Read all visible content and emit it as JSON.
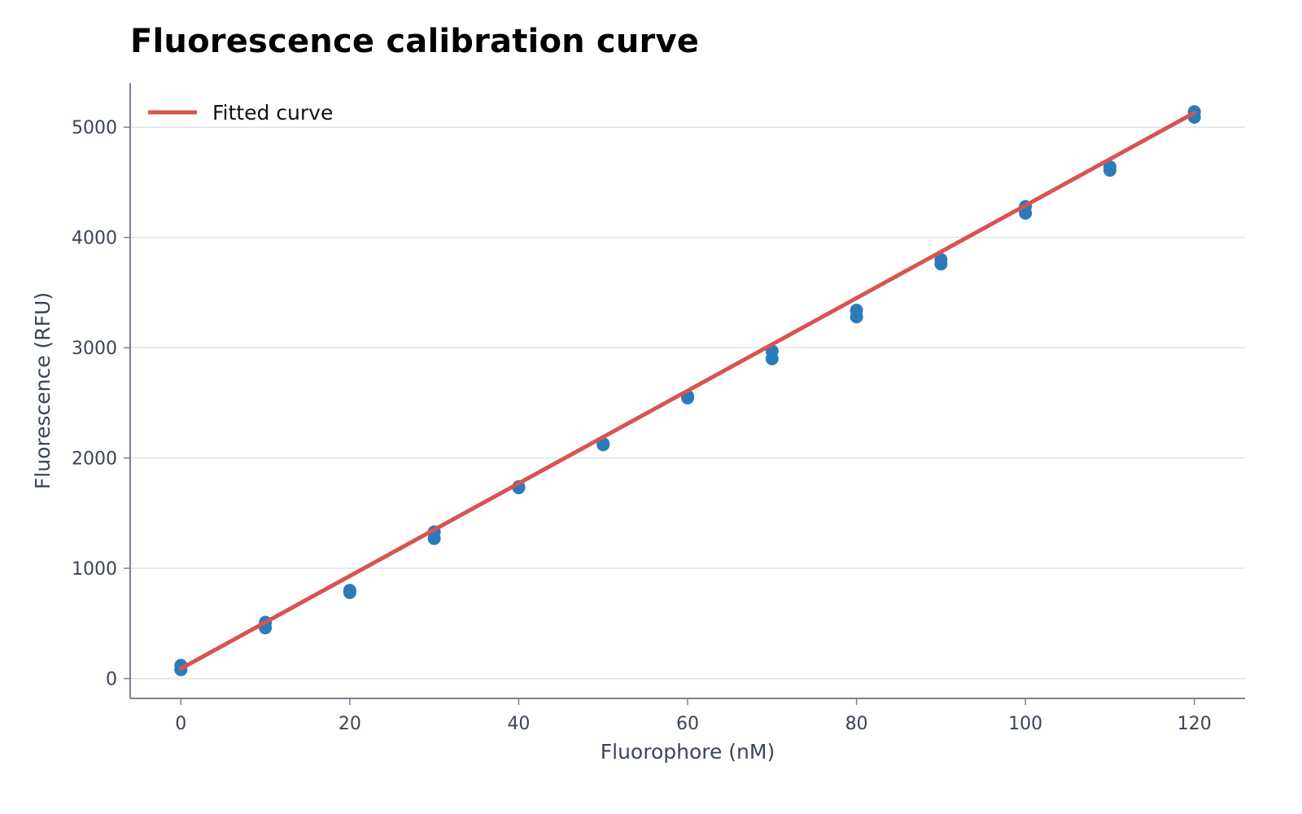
{
  "chart_data": {
    "type": "scatter",
    "title": "Fluorescence calibration curve",
    "xlabel": "Fluorophore (nM)",
    "ylabel": "Fluorescence (RFU)",
    "xlim": [
      -6,
      126
    ],
    "ylim": [
      -180,
      5400
    ],
    "xticks": [
      0,
      20,
      40,
      60,
      80,
      100,
      120
    ],
    "yticks": [
      0,
      1000,
      2000,
      3000,
      4000,
      5000
    ],
    "grid": "horizontal",
    "legend": "top-left",
    "series": [
      {
        "kind": "scatter",
        "color": "#2b7bba",
        "points": [
          [
            0,
            120
          ],
          [
            0,
            80
          ],
          [
            10,
            510
          ],
          [
            10,
            460
          ],
          [
            20,
            800
          ],
          [
            20,
            780
          ],
          [
            30,
            1330
          ],
          [
            30,
            1270
          ],
          [
            40,
            1740
          ],
          [
            40,
            1730
          ],
          [
            50,
            2130
          ],
          [
            50,
            2120
          ],
          [
            60,
            2560
          ],
          [
            60,
            2545
          ],
          [
            70,
            2970
          ],
          [
            70,
            2900
          ],
          [
            80,
            3340
          ],
          [
            80,
            3280
          ],
          [
            90,
            3800
          ],
          [
            90,
            3760
          ],
          [
            100,
            4280
          ],
          [
            100,
            4220
          ],
          [
            110,
            4640
          ],
          [
            110,
            4610
          ],
          [
            120,
            5140
          ],
          [
            120,
            5090
          ]
        ]
      },
      {
        "kind": "line",
        "name": "Fitted curve",
        "color": "#d9534f",
        "points": [
          [
            0,
            90
          ],
          [
            120,
            5130
          ]
        ]
      }
    ]
  }
}
